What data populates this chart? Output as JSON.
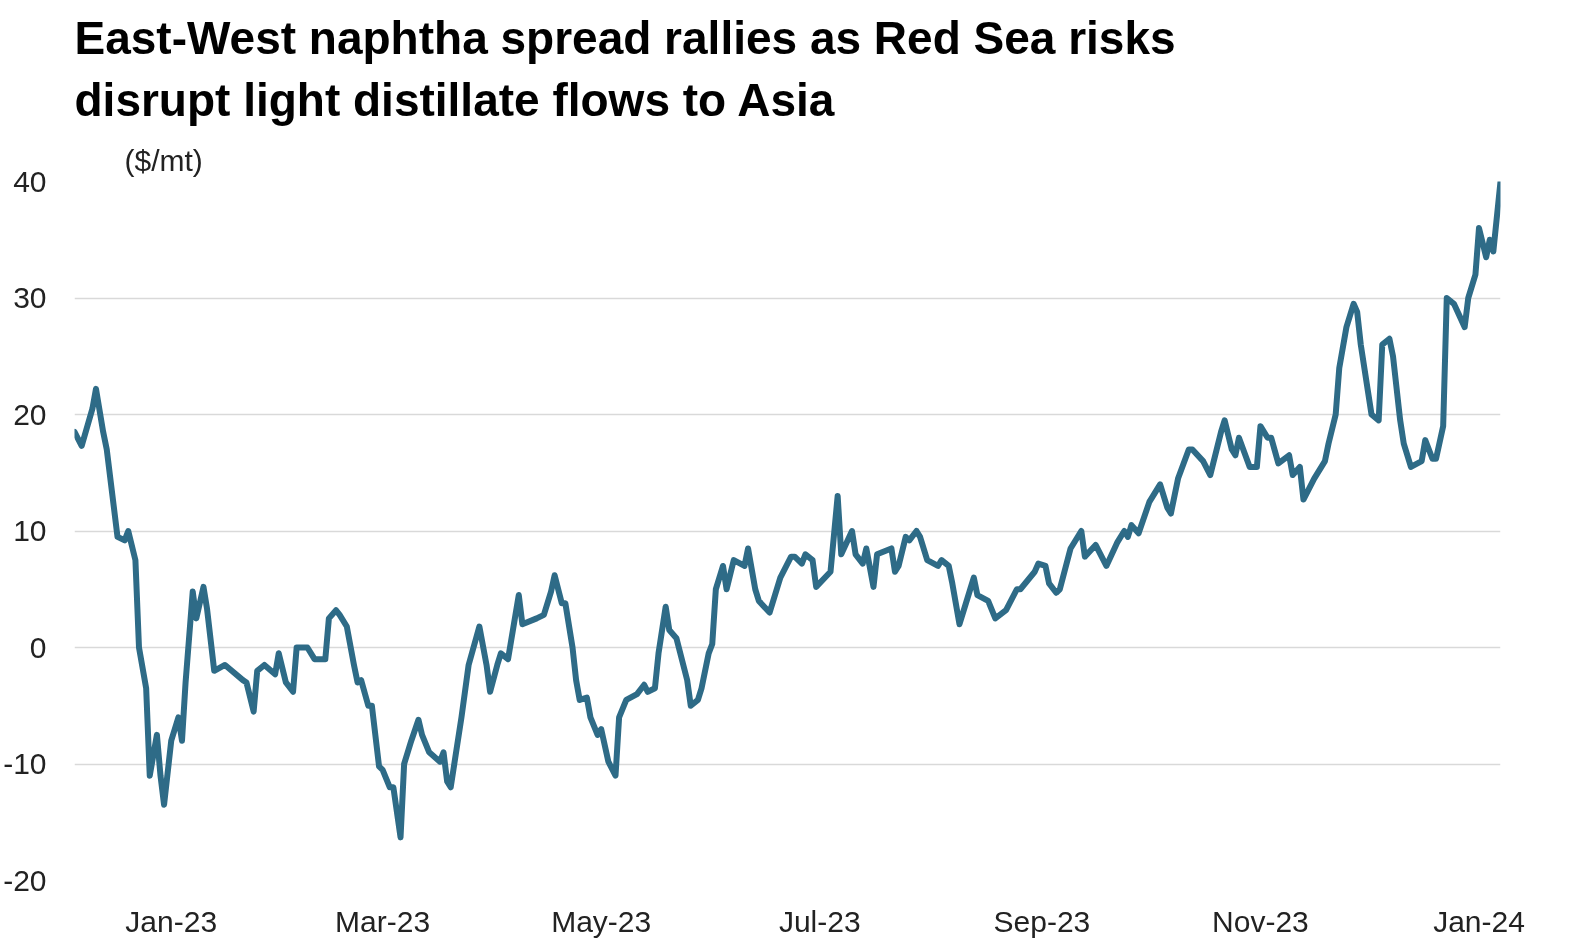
{
  "chart_data": {
    "type": "line",
    "title": "East-West naphtha spread rallies as Red Sea risks disrupt light distillate flows to Asia",
    "ylabel": "($/mt)",
    "x": [
      "2022-12-05",
      "2022-12-07",
      "2022-12-10",
      "2022-12-11",
      "2022-12-13",
      "2022-12-14",
      "2022-12-16",
      "2022-12-17",
      "2022-12-19",
      "2022-12-20",
      "2022-12-22",
      "2022-12-23",
      "2022-12-25",
      "2022-12-26",
      "2022-12-28",
      "2022-12-29",
      "2022-12-30",
      "2023-01-01",
      "2023-01-03",
      "2023-01-04",
      "2023-01-05",
      "2023-01-07",
      "2023-01-08",
      "2023-01-10",
      "2023-01-11",
      "2023-01-13",
      "2023-01-16",
      "2023-01-21",
      "2023-01-22",
      "2023-01-24",
      "2023-01-25",
      "2023-01-27",
      "2023-01-30",
      "2023-01-31",
      "2023-02-02",
      "2023-02-04",
      "2023-02-05",
      "2023-02-08",
      "2023-02-10",
      "2023-02-13",
      "2023-02-14",
      "2023-02-16",
      "2023-02-17",
      "2023-02-19",
      "2023-02-21",
      "2023-02-22",
      "2023-02-23",
      "2023-02-25",
      "2023-02-26",
      "2023-02-28",
      "2023-03-01",
      "2023-03-03",
      "2023-03-04",
      "2023-03-06",
      "2023-03-07",
      "2023-03-09",
      "2023-03-11",
      "2023-03-12",
      "2023-03-14",
      "2023-03-17",
      "2023-03-18",
      "2023-03-19",
      "2023-03-20",
      "2023-03-23",
      "2023-03-25",
      "2023-03-28",
      "2023-03-30",
      "2023-03-31",
      "2023-04-02",
      "2023-04-03",
      "2023-04-05",
      "2023-04-08",
      "2023-04-09",
      "2023-04-13",
      "2023-04-15",
      "2023-04-17",
      "2023-04-18",
      "2023-04-20",
      "2023-04-21",
      "2023-04-23",
      "2023-04-24",
      "2023-04-25",
      "2023-04-27",
      "2023-04-28",
      "2023-04-30",
      "2023-05-01",
      "2023-05-03",
      "2023-05-05",
      "2023-05-06",
      "2023-05-08",
      "2023-05-11",
      "2023-05-13",
      "2023-05-14",
      "2023-05-16",
      "2023-05-17",
      "2023-05-19",
      "2023-05-20",
      "2023-05-22",
      "2023-05-25",
      "2023-05-26",
      "2023-05-28",
      "2023-05-29",
      "2023-05-31",
      "2023-06-01",
      "2023-06-02",
      "2023-06-04",
      "2023-06-05",
      "2023-06-07",
      "2023-06-10",
      "2023-06-11",
      "2023-06-13",
      "2023-06-14",
      "2023-06-17",
      "2023-06-20",
      "2023-06-23",
      "2023-06-24",
      "2023-06-26",
      "2023-06-27",
      "2023-06-29",
      "2023-06-30",
      "2023-07-04",
      "2023-07-06",
      "2023-07-07",
      "2023-07-10",
      "2023-07-11",
      "2023-07-13",
      "2023-07-14",
      "2023-07-16",
      "2023-07-17",
      "2023-07-21",
      "2023-07-22",
      "2023-07-23",
      "2023-07-25",
      "2023-07-26",
      "2023-07-28",
      "2023-07-29",
      "2023-07-31",
      "2023-08-03",
      "2023-08-04",
      "2023-08-06",
      "2023-08-07",
      "2023-08-09",
      "2023-08-12",
      "2023-08-13",
      "2023-08-14",
      "2023-08-17",
      "2023-08-19",
      "2023-08-22",
      "2023-08-25",
      "2023-08-26",
      "2023-08-30",
      "2023-08-31",
      "2023-09-02",
      "2023-09-03",
      "2023-09-05",
      "2023-09-06",
      "2023-09-09",
      "2023-09-12",
      "2023-09-13",
      "2023-09-16",
      "2023-09-19",
      "2023-09-22",
      "2023-09-24",
      "2023-09-25",
      "2023-09-26",
      "2023-09-28",
      "2023-10-01",
      "2023-10-04",
      "2023-10-06",
      "2023-10-07",
      "2023-10-09",
      "2023-10-12",
      "2023-10-13",
      "2023-10-16",
      "2023-10-18",
      "2023-10-21",
      "2023-10-22",
      "2023-10-24",
      "2023-10-25",
      "2023-10-26",
      "2023-10-29",
      "2023-10-31",
      "2023-11-01",
      "2023-11-03",
      "2023-11-04",
      "2023-11-06",
      "2023-11-09",
      "2023-11-10",
      "2023-11-12",
      "2023-11-13",
      "2023-11-16",
      "2023-11-19",
      "2023-11-20",
      "2023-11-22",
      "2023-11-23",
      "2023-11-25",
      "2023-11-27",
      "2023-11-28",
      "2023-11-29",
      "2023-12-01",
      "2023-12-02",
      "2023-12-04",
      "2023-12-05",
      "2023-12-07",
      "2023-12-08",
      "2023-12-10",
      "2023-12-11",
      "2023-12-13",
      "2023-12-16",
      "2023-12-17",
      "2023-12-19",
      "2023-12-20",
      "2023-12-22",
      "2023-12-23",
      "2023-12-25",
      "2023-12-28",
      "2023-12-29",
      "2023-12-31",
      "2024-01-01",
      "2024-01-03",
      "2024-01-04",
      "2024-01-05",
      "2024-01-07"
    ],
    "series": [
      {
        "color": "#2e6b87",
        "values": [
          18.5,
          17.3,
          20.5,
          22.2,
          18.5,
          17,
          12,
          9.5,
          9.2,
          10,
          7.5,
          0,
          -3.5,
          -11,
          -7.5,
          -11,
          -13.5,
          -8,
          -6,
          -8,
          -3,
          4.8,
          2.5,
          5.2,
          3.3,
          -2,
          -1.5,
          -2.8,
          -3,
          -5.5,
          -2,
          -1.5,
          -2.3,
          -0.5,
          -3,
          -3.8,
          0,
          0,
          -1,
          -1,
          2.5,
          3.2,
          2.8,
          1.8,
          -1.5,
          -3,
          -2.8,
          -5,
          -5,
          -10.2,
          -10.5,
          -12,
          -12,
          -16.3,
          -10,
          -8,
          -6.2,
          -7.5,
          -9,
          -9.8,
          -9,
          -11.5,
          -12,
          -6,
          -1.5,
          1.8,
          -1.5,
          -3.8,
          -1.5,
          -0.5,
          -1,
          4.5,
          2,
          2.5,
          2.8,
          4.8,
          6.2,
          3.8,
          3.8,
          0,
          -2.8,
          -4.5,
          -4.3,
          -6,
          -7.5,
          -7,
          -9.8,
          -11,
          -6,
          -4.5,
          -4,
          -3.2,
          -3.8,
          -3.5,
          -0.5,
          3.5,
          1.5,
          0.8,
          -2.8,
          -5,
          -4.5,
          -3.5,
          -0.5,
          0.3,
          5,
          7,
          5,
          7.5,
          7,
          8.5,
          5,
          4,
          3,
          6,
          7.8,
          7.8,
          7.2,
          8,
          7.5,
          5.2,
          6.5,
          13,
          8,
          10,
          8,
          7.2,
          8.5,
          5.2,
          8,
          8.5,
          6.5,
          7,
          9.5,
          9.2,
          10,
          9.5,
          7.5,
          7,
          7.5,
          7,
          5.5,
          2,
          5,
          6,
          4.5,
          4,
          2.5,
          3.2,
          5,
          5,
          6.5,
          7.2,
          7,
          5.5,
          4.7,
          5,
          8.5,
          10,
          7.8,
          8.8,
          7,
          9,
          10,
          9.5,
          10.5,
          9.8,
          12.5,
          14,
          12,
          11.5,
          14.5,
          17,
          17,
          16,
          14.8,
          18.5,
          19.5,
          17,
          16.5,
          18,
          15.5,
          15.5,
          19,
          18,
          18,
          15.8,
          16.5,
          14.8,
          15.5,
          12.7,
          14.5,
          16,
          17.5,
          20,
          24,
          27.5,
          29.5,
          28.8,
          26,
          22,
          20,
          19.5,
          26,
          26.5,
          25,
          19.5,
          17.5,
          15.5,
          16,
          17.8,
          16.2,
          16.2,
          19,
          30,
          29.5,
          27.5,
          30,
          32,
          36,
          33.5,
          35,
          34,
          40
        ]
      }
    ],
    "xlim": [
      "2022-12-05",
      "2024-01-07"
    ],
    "xticks": [
      {
        "value": "2023-01-01",
        "label": "Jan-23"
      },
      {
        "value": "2023-03-01",
        "label": "Mar-23"
      },
      {
        "value": "2023-05-01",
        "label": "May-23"
      },
      {
        "value": "2023-07-01",
        "label": "Jul-23"
      },
      {
        "value": "2023-09-01",
        "label": "Sep-23"
      },
      {
        "value": "2023-11-01",
        "label": "Nov-23"
      },
      {
        "value": "2024-01-01",
        "label": "Jan-24"
      }
    ],
    "ylim": [
      -20,
      40
    ],
    "yticks": [
      -20,
      -10,
      0,
      10,
      20,
      30,
      40
    ],
    "grid": "y",
    "line_style": "solid"
  }
}
